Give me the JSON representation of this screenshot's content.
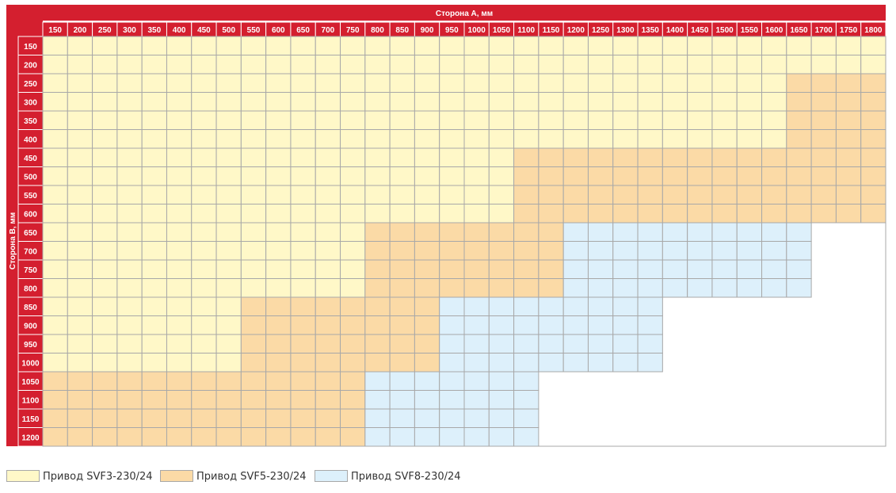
{
  "chart_data": {
    "type": "heatmap",
    "xlabel": "Сторона А, мм",
    "ylabel": "Сторона B, мм",
    "x": [
      "150",
      "200",
      "250",
      "300",
      "350",
      "400",
      "450",
      "500",
      "550",
      "600",
      "650",
      "700",
      "750",
      "800",
      "850",
      "900",
      "950",
      "1000",
      "1050",
      "1100",
      "1150",
      "1200",
      "1250",
      "1300",
      "1350",
      "1400",
      "1450",
      "1500",
      "1550",
      "1600",
      "1650",
      "1700",
      "1750",
      "1800"
    ],
    "y": [
      "150",
      "200",
      "250",
      "300",
      "350",
      "400",
      "450",
      "500",
      "550",
      "600",
      "650",
      "700",
      "750",
      "800",
      "850",
      "900",
      "950",
      "1000",
      "1050",
      "1100",
      "1150",
      "1200"
    ],
    "categories": [
      "Привод SVF3-230/24",
      "Привод SVF5-230/24",
      "Привод SVF8-230/24"
    ],
    "colors": {
      "svf3": "#fff8c8",
      "svf5": "#fbdaa6",
      "svf8": "#ddf0fb",
      "header": "#d41f2f",
      "grid": "#a8a8a8"
    },
    "rows": [
      {
        "b": "150",
        "ranges": [
          {
            "actuator": "svf3",
            "a_from": "150",
            "a_to": "1800"
          }
        ]
      },
      {
        "b": "200",
        "ranges": [
          {
            "actuator": "svf3",
            "a_from": "150",
            "a_to": "1800"
          }
        ]
      },
      {
        "b": "250",
        "ranges": [
          {
            "actuator": "svf3",
            "a_from": "150",
            "a_to": "1600"
          },
          {
            "actuator": "svf5",
            "a_from": "1650",
            "a_to": "1800"
          }
        ]
      },
      {
        "b": "300",
        "ranges": [
          {
            "actuator": "svf3",
            "a_from": "150",
            "a_to": "1600"
          },
          {
            "actuator": "svf5",
            "a_from": "1650",
            "a_to": "1800"
          }
        ]
      },
      {
        "b": "350",
        "ranges": [
          {
            "actuator": "svf3",
            "a_from": "150",
            "a_to": "1600"
          },
          {
            "actuator": "svf5",
            "a_from": "1650",
            "a_to": "1800"
          }
        ]
      },
      {
        "b": "400",
        "ranges": [
          {
            "actuator": "svf3",
            "a_from": "150",
            "a_to": "1600"
          },
          {
            "actuator": "svf5",
            "a_from": "1650",
            "a_to": "1800"
          }
        ]
      },
      {
        "b": "450",
        "ranges": [
          {
            "actuator": "svf3",
            "a_from": "150",
            "a_to": "1050"
          },
          {
            "actuator": "svf5",
            "a_from": "1100",
            "a_to": "1800"
          }
        ]
      },
      {
        "b": "500",
        "ranges": [
          {
            "actuator": "svf3",
            "a_from": "150",
            "a_to": "1050"
          },
          {
            "actuator": "svf5",
            "a_from": "1100",
            "a_to": "1800"
          }
        ]
      },
      {
        "b": "550",
        "ranges": [
          {
            "actuator": "svf3",
            "a_from": "150",
            "a_to": "1050"
          },
          {
            "actuator": "svf5",
            "a_from": "1100",
            "a_to": "1800"
          }
        ]
      },
      {
        "b": "600",
        "ranges": [
          {
            "actuator": "svf3",
            "a_from": "150",
            "a_to": "1050"
          },
          {
            "actuator": "svf5",
            "a_from": "1100",
            "a_to": "1800"
          }
        ]
      },
      {
        "b": "650",
        "ranges": [
          {
            "actuator": "svf3",
            "a_from": "150",
            "a_to": "750"
          },
          {
            "actuator": "svf5",
            "a_from": "800",
            "a_to": "1150"
          },
          {
            "actuator": "svf8",
            "a_from": "1200",
            "a_to": "1650"
          }
        ]
      },
      {
        "b": "700",
        "ranges": [
          {
            "actuator": "svf3",
            "a_from": "150",
            "a_to": "750"
          },
          {
            "actuator": "svf5",
            "a_from": "800",
            "a_to": "1150"
          },
          {
            "actuator": "svf8",
            "a_from": "1200",
            "a_to": "1650"
          }
        ]
      },
      {
        "b": "750",
        "ranges": [
          {
            "actuator": "svf3",
            "a_from": "150",
            "a_to": "750"
          },
          {
            "actuator": "svf5",
            "a_from": "800",
            "a_to": "1150"
          },
          {
            "actuator": "svf8",
            "a_from": "1200",
            "a_to": "1650"
          }
        ]
      },
      {
        "b": "800",
        "ranges": [
          {
            "actuator": "svf3",
            "a_from": "150",
            "a_to": "750"
          },
          {
            "actuator": "svf5",
            "a_from": "800",
            "a_to": "1150"
          },
          {
            "actuator": "svf8",
            "a_from": "1200",
            "a_to": "1650"
          }
        ]
      },
      {
        "b": "850",
        "ranges": [
          {
            "actuator": "svf3",
            "a_from": "150",
            "a_to": "500"
          },
          {
            "actuator": "svf5",
            "a_from": "550",
            "a_to": "900"
          },
          {
            "actuator": "svf8",
            "a_from": "950",
            "a_to": "1350"
          }
        ]
      },
      {
        "b": "900",
        "ranges": [
          {
            "actuator": "svf3",
            "a_from": "150",
            "a_to": "500"
          },
          {
            "actuator": "svf5",
            "a_from": "550",
            "a_to": "900"
          },
          {
            "actuator": "svf8",
            "a_from": "950",
            "a_to": "1350"
          }
        ]
      },
      {
        "b": "950",
        "ranges": [
          {
            "actuator": "svf3",
            "a_from": "150",
            "a_to": "500"
          },
          {
            "actuator": "svf5",
            "a_from": "550",
            "a_to": "900"
          },
          {
            "actuator": "svf8",
            "a_from": "950",
            "a_to": "1350"
          }
        ]
      },
      {
        "b": "1000",
        "ranges": [
          {
            "actuator": "svf3",
            "a_from": "150",
            "a_to": "500"
          },
          {
            "actuator": "svf5",
            "a_from": "550",
            "a_to": "900"
          },
          {
            "actuator": "svf8",
            "a_from": "950",
            "a_to": "1350"
          }
        ]
      },
      {
        "b": "1050",
        "ranges": [
          {
            "actuator": "svf5",
            "a_from": "150",
            "a_to": "750"
          },
          {
            "actuator": "svf8",
            "a_from": "800",
            "a_to": "1100"
          }
        ]
      },
      {
        "b": "1100",
        "ranges": [
          {
            "actuator": "svf5",
            "a_from": "150",
            "a_to": "750"
          },
          {
            "actuator": "svf8",
            "a_from": "800",
            "a_to": "1100"
          }
        ]
      },
      {
        "b": "1150",
        "ranges": [
          {
            "actuator": "svf5",
            "a_from": "150",
            "a_to": "750"
          },
          {
            "actuator": "svf8",
            "a_from": "800",
            "a_to": "1100"
          }
        ]
      },
      {
        "b": "1200",
        "ranges": [
          {
            "actuator": "svf5",
            "a_from": "150",
            "a_to": "750"
          },
          {
            "actuator": "svf8",
            "a_from": "800",
            "a_to": "1100"
          }
        ]
      }
    ]
  },
  "legend": {
    "items": [
      {
        "key": "svf3",
        "label": "Привод SVF3-230/24"
      },
      {
        "key": "svf5",
        "label": "Привод SVF5-230/24"
      },
      {
        "key": "svf8",
        "label": "Привод SVF8-230/24"
      }
    ]
  }
}
